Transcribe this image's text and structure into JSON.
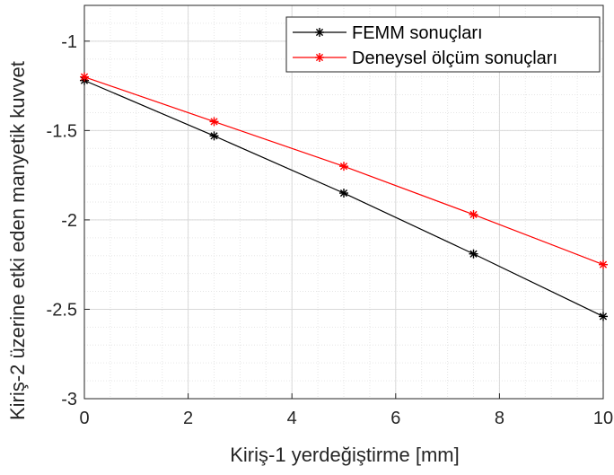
{
  "chart_data": {
    "type": "line",
    "title": "",
    "xlabel": "Kiriş-1 yerdeğiştirme [mm]",
    "ylabel": "Kiriş-2 üzerine etki eden manyetik kuvvet",
    "xlim": [
      0,
      10
    ],
    "ylim": [
      -3,
      -0.8
    ],
    "xticks": [
      0,
      2,
      4,
      6,
      8,
      10
    ],
    "xtick_labels": [
      "0",
      "2",
      "4",
      "6",
      "8",
      "10"
    ],
    "yticks": [
      -3,
      -2.5,
      -2,
      -1.5,
      -1
    ],
    "ytick_labels": [
      "-3",
      "-2.5",
      "-2",
      "-1.5",
      "-1"
    ],
    "grid": true,
    "minor_grid": true,
    "legend_position": "top-right",
    "x": [
      0,
      2.5,
      5,
      7.5,
      10
    ],
    "series": [
      {
        "name": "FEMM sonuçları",
        "color": "#000000",
        "marker": "asterisk",
        "values": [
          -1.22,
          -1.53,
          -1.85,
          -2.19,
          -2.54
        ]
      },
      {
        "name": "Deneysel ölçüm sonuçları",
        "color": "#ff0000",
        "marker": "asterisk",
        "values": [
          -1.2,
          -1.45,
          -1.7,
          -1.97,
          -2.25
        ]
      }
    ]
  }
}
